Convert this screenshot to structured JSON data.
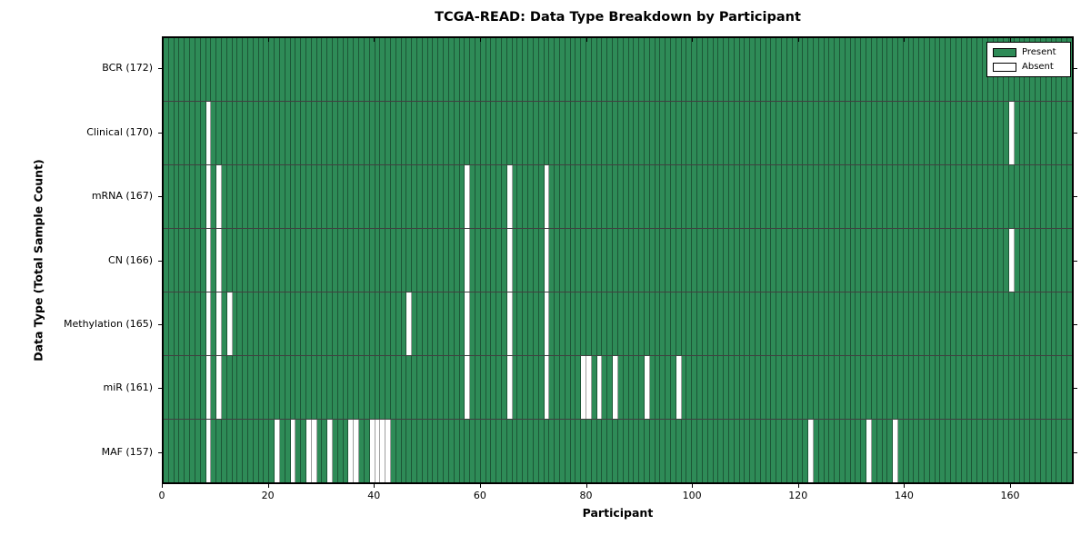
{
  "chart_data": {
    "type": "heatmap",
    "title": "TCGA-READ: Data Type Breakdown by Participant",
    "xlabel": "Participant",
    "ylabel": "Data Type (Total Sample Count)",
    "x_ticks": [
      0,
      20,
      40,
      60,
      80,
      100,
      120,
      140,
      160
    ],
    "x_range": [
      0,
      172
    ],
    "n_participants": 172,
    "grid": "cell-borders",
    "legend_position": "upper-right",
    "legend": [
      {
        "label": "Present",
        "value": "present"
      },
      {
        "label": "Absent",
        "value": "absent"
      }
    ],
    "colors": {
      "present": "#2e8b57",
      "absent": "#ffffff",
      "axis": "#000000"
    },
    "rows": [
      {
        "label": "BCR (172)",
        "name": "BCR",
        "total": 172,
        "absent_participants": []
      },
      {
        "label": "Clinical (170)",
        "name": "Clinical",
        "total": 170,
        "absent_participants": [
          8,
          160
        ]
      },
      {
        "label": "mRNA (167)",
        "name": "mRNA",
        "total": 167,
        "absent_participants": [
          8,
          10,
          57,
          65,
          72
        ]
      },
      {
        "label": "CN (166)",
        "name": "CN",
        "total": 166,
        "absent_participants": [
          8,
          10,
          57,
          65,
          72,
          160
        ]
      },
      {
        "label": "Methylation (165)",
        "name": "Methylation",
        "total": 165,
        "absent_participants": [
          8,
          10,
          12,
          46,
          57,
          65,
          72
        ]
      },
      {
        "label": "miR (161)",
        "name": "miR",
        "total": 161,
        "absent_participants": [
          8,
          10,
          57,
          65,
          72,
          79,
          80,
          82,
          85,
          91,
          97
        ]
      },
      {
        "label": "MAF (157)",
        "name": "MAF",
        "total": 157,
        "absent_participants": [
          8,
          21,
          24,
          27,
          28,
          31,
          35,
          36,
          39,
          40,
          41,
          42,
          122,
          133,
          138
        ]
      }
    ]
  }
}
